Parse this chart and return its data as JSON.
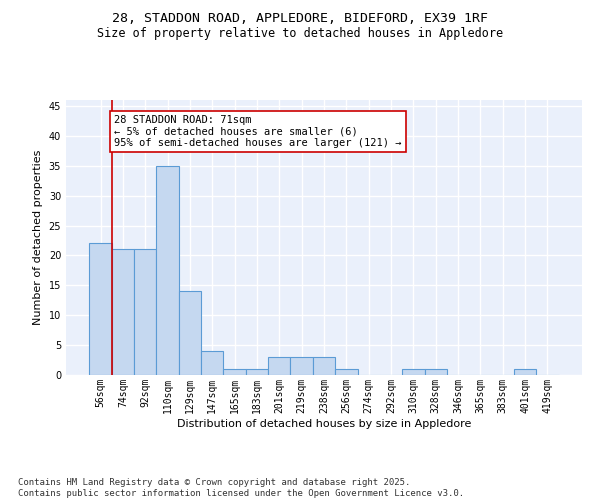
{
  "title_line1": "28, STADDON ROAD, APPLEDORE, BIDEFORD, EX39 1RF",
  "title_line2": "Size of property relative to detached houses in Appledore",
  "xlabel": "Distribution of detached houses by size in Appledore",
  "ylabel": "Number of detached properties",
  "categories": [
    "56sqm",
    "74sqm",
    "92sqm",
    "110sqm",
    "129sqm",
    "147sqm",
    "165sqm",
    "183sqm",
    "201sqm",
    "219sqm",
    "238sqm",
    "256sqm",
    "274sqm",
    "292sqm",
    "310sqm",
    "328sqm",
    "346sqm",
    "365sqm",
    "383sqm",
    "401sqm",
    "419sqm"
  ],
  "values": [
    22,
    21,
    21,
    35,
    14,
    4,
    1,
    1,
    3,
    3,
    3,
    1,
    0,
    0,
    1,
    1,
    0,
    0,
    0,
    1,
    0
  ],
  "bar_color": "#c5d8f0",
  "bar_edge_color": "#5b9bd5",
  "bar_edge_width": 0.8,
  "highlight_color": "#cc0000",
  "annotation_text": "28 STADDON ROAD: 71sqm\n← 5% of detached houses are smaller (6)\n95% of semi-detached houses are larger (121) →",
  "annotation_box_color": "white",
  "annotation_box_edge_color": "#cc0000",
  "ylim": [
    0,
    46
  ],
  "yticks": [
    0,
    5,
    10,
    15,
    20,
    25,
    30,
    35,
    40,
    45
  ],
  "background_color": "#eaf0fb",
  "grid_color": "#ffffff",
  "footer_text": "Contains HM Land Registry data © Crown copyright and database right 2025.\nContains public sector information licensed under the Open Government Licence v3.0.",
  "title_fontsize": 9.5,
  "subtitle_fontsize": 8.5,
  "axis_label_fontsize": 8,
  "tick_fontsize": 7,
  "annotation_fontsize": 7.5,
  "footer_fontsize": 6.5
}
